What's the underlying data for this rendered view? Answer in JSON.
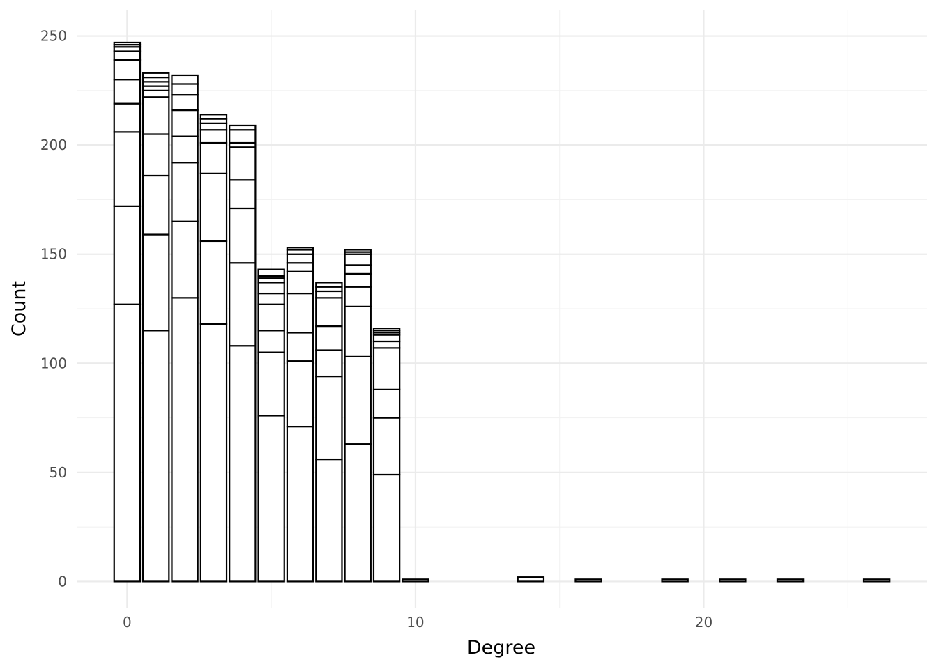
{
  "chart_data": {
    "type": "bar",
    "title": "",
    "xlabel": "Degree",
    "ylabel": "Count",
    "xlim": [
      -1.75,
      27.75
    ],
    "ylim": [
      -12,
      262
    ],
    "x_ticks": [
      0,
      10,
      20
    ],
    "y_ticks": [
      0,
      50,
      100,
      150,
      200,
      250
    ],
    "x_tick_labels": [
      "0",
      "10",
      "20"
    ],
    "y_tick_labels": [
      "0",
      "50",
      "100",
      "150",
      "200",
      "250"
    ],
    "grid": true,
    "legend": "none",
    "bar_fill": "#ffffff",
    "bar_outline": "#000000",
    "stacked_bars": [
      {
        "x": 0,
        "boundaries": [
          127,
          172,
          206,
          219,
          230,
          239,
          243,
          245,
          246,
          247
        ]
      },
      {
        "x": 1,
        "boundaries": [
          115,
          159,
          186,
          205,
          222,
          225,
          227,
          229,
          231,
          233
        ]
      },
      {
        "x": 2,
        "boundaries": [
          130,
          165,
          192,
          204,
          216,
          223,
          228,
          232
        ]
      },
      {
        "x": 3,
        "boundaries": [
          118,
          156,
          187,
          201,
          207,
          210,
          212,
          214
        ]
      },
      {
        "x": 4,
        "boundaries": [
          108,
          146,
          171,
          184,
          199,
          201,
          207,
          209
        ]
      },
      {
        "x": 5,
        "boundaries": [
          76,
          105,
          115,
          127,
          132,
          137,
          139,
          140,
          143
        ]
      },
      {
        "x": 6,
        "boundaries": [
          71,
          101,
          114,
          132,
          142,
          146,
          150,
          152,
          153
        ]
      },
      {
        "x": 7,
        "boundaries": [
          56,
          94,
          106,
          117,
          130,
          133,
          135,
          137
        ]
      },
      {
        "x": 8,
        "boundaries": [
          63,
          103,
          126,
          135,
          141,
          145,
          150,
          151,
          152
        ]
      },
      {
        "x": 9,
        "boundaries": [
          49,
          75,
          88,
          107,
          110,
          113,
          114,
          115,
          116
        ]
      },
      {
        "x": 10,
        "boundaries": [
          1
        ]
      },
      {
        "x": 14,
        "boundaries": [
          2
        ]
      },
      {
        "x": 16,
        "boundaries": [
          1
        ]
      },
      {
        "x": 19,
        "boundaries": [
          1
        ]
      },
      {
        "x": 21,
        "boundaries": [
          1
        ]
      },
      {
        "x": 23,
        "boundaries": [
          1
        ]
      },
      {
        "x": 26,
        "boundaries": [
          1
        ]
      }
    ]
  }
}
